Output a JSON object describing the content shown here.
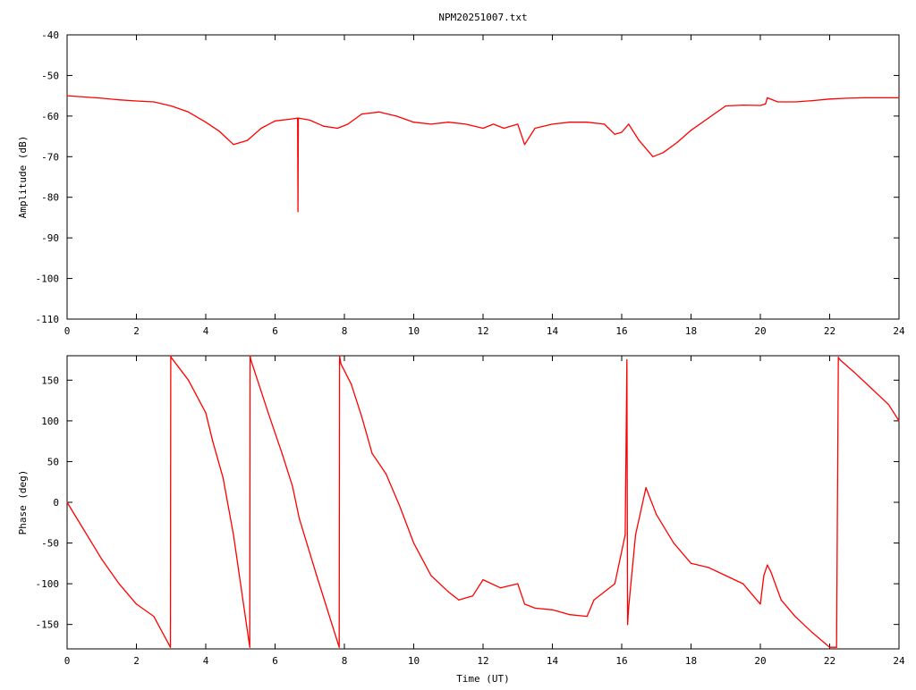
{
  "title": "NPM20251007.txt",
  "chart_data": [
    {
      "type": "line",
      "ylabel": "Amplitude (dB)",
      "xlabel": "",
      "xlim": [
        0,
        24
      ],
      "ylim": [
        -110,
        -40
      ],
      "xticks": [
        "0",
        "2",
        "4",
        "6",
        "8",
        "10",
        "12",
        "14",
        "16",
        "18",
        "20",
        "22",
        "24"
      ],
      "yticks": [
        "-40",
        "-50",
        "-60",
        "-70",
        "-80",
        "-90",
        "-100",
        "-110"
      ],
      "series": [
        {
          "color": "#ff0000",
          "x": [
            0,
            0.5,
            1,
            1.5,
            2,
            2.5,
            3,
            3.5,
            4,
            4.4,
            4.8,
            5.2,
            5.6,
            6,
            6.4,
            6.65,
            6.66,
            6.67,
            7,
            7.4,
            7.8,
            8.1,
            8.5,
            9,
            9.5,
            10,
            10.5,
            11,
            11.5,
            12,
            12.3,
            12.6,
            13,
            13.2,
            13.5,
            14,
            14.5,
            15,
            15.5,
            15.8,
            16,
            16.2,
            16.5,
            16.9,
            17.2,
            17.6,
            18,
            18.5,
            19,
            19.5,
            20,
            20.15,
            20.2,
            20.5,
            21,
            21.5,
            22,
            22.5,
            23,
            23.5,
            24
          ],
          "y": [
            -55,
            -55.3,
            -55.6,
            -56,
            -56.3,
            -56.5,
            -57.5,
            -59,
            -61.5,
            -63.8,
            -67,
            -66,
            -63,
            -61.2,
            -60.8,
            -60.5,
            -83.5,
            -60.5,
            -61,
            -62.5,
            -63,
            -62,
            -59.5,
            -59,
            -60,
            -61.5,
            -62,
            -61.5,
            -62,
            -63,
            -62,
            -63,
            -62,
            -67,
            -63,
            -62,
            -61.5,
            -61.5,
            -62,
            -64.5,
            -64,
            -62,
            -66,
            -70,
            -69,
            -66.5,
            -63.5,
            -60.5,
            -57.5,
            -57.3,
            -57.4,
            -57,
            -55.5,
            -56.5,
            -56.5,
            -56.2,
            -55.8,
            -55.6,
            -55.5,
            -55.5,
            -55.5
          ]
        }
      ]
    },
    {
      "type": "line",
      "ylabel": "Phase (deg)",
      "xlabel": "Time (UT)",
      "xlim": [
        0,
        24
      ],
      "ylim": [
        -180,
        180
      ],
      "xticks": [
        "0",
        "2",
        "4",
        "6",
        "8",
        "10",
        "12",
        "14",
        "16",
        "18",
        "20",
        "22",
        "24"
      ],
      "yticks": [
        "150",
        "100",
        "50",
        "0",
        "-50",
        "-100",
        "-150"
      ],
      "series": [
        {
          "color": "#ff0000",
          "x": [
            0,
            0.5,
            1,
            1.5,
            2,
            2.5,
            2.98,
            2.99,
            3.0,
            3.5,
            4,
            4.2,
            4.5,
            4.8,
            5.27,
            5.28,
            5.3,
            5.8,
            6.2,
            6.5,
            6.7,
            7.2,
            7.85,
            7.86,
            7.9,
            8.2,
            8.5,
            8.8,
            9.2,
            9.6,
            10,
            10.5,
            11,
            11.3,
            11.7,
            12,
            12.5,
            13,
            13.2,
            13.5,
            14,
            14.5,
            15,
            15.2,
            15.5,
            15.8,
            16.1,
            16.15,
            16.17,
            16.2,
            16.4,
            16.7,
            17,
            17.5,
            18,
            18.5,
            19,
            19.5,
            20,
            20.1,
            20.2,
            20.3,
            20.6,
            21,
            21.5,
            22,
            22.2,
            22.25,
            22.3,
            22.7,
            23.2,
            23.7,
            24
          ],
          "y": [
            0,
            -35,
            -70,
            -100,
            -125,
            -140,
            -178,
            180,
            178,
            150,
            110,
            75,
            30,
            -40,
            -178,
            180,
            175,
            110,
            60,
            20,
            -20,
            -90,
            -178,
            180,
            170,
            145,
            105,
            60,
            35,
            -5,
            -50,
            -90,
            -110,
            -120,
            -115,
            -95,
            -105,
            -100,
            -125,
            -130,
            -132,
            -138,
            -140,
            -120,
            -110,
            -100,
            -40,
            175,
            -150,
            -130,
            -40,
            18,
            -15,
            -50,
            -75,
            -80,
            -90,
            -100,
            -125,
            -90,
            -77,
            -85,
            -120,
            -140,
            -160,
            -178,
            -178,
            178,
            175,
            160,
            140,
            120,
            100
          ]
        }
      ]
    }
  ]
}
